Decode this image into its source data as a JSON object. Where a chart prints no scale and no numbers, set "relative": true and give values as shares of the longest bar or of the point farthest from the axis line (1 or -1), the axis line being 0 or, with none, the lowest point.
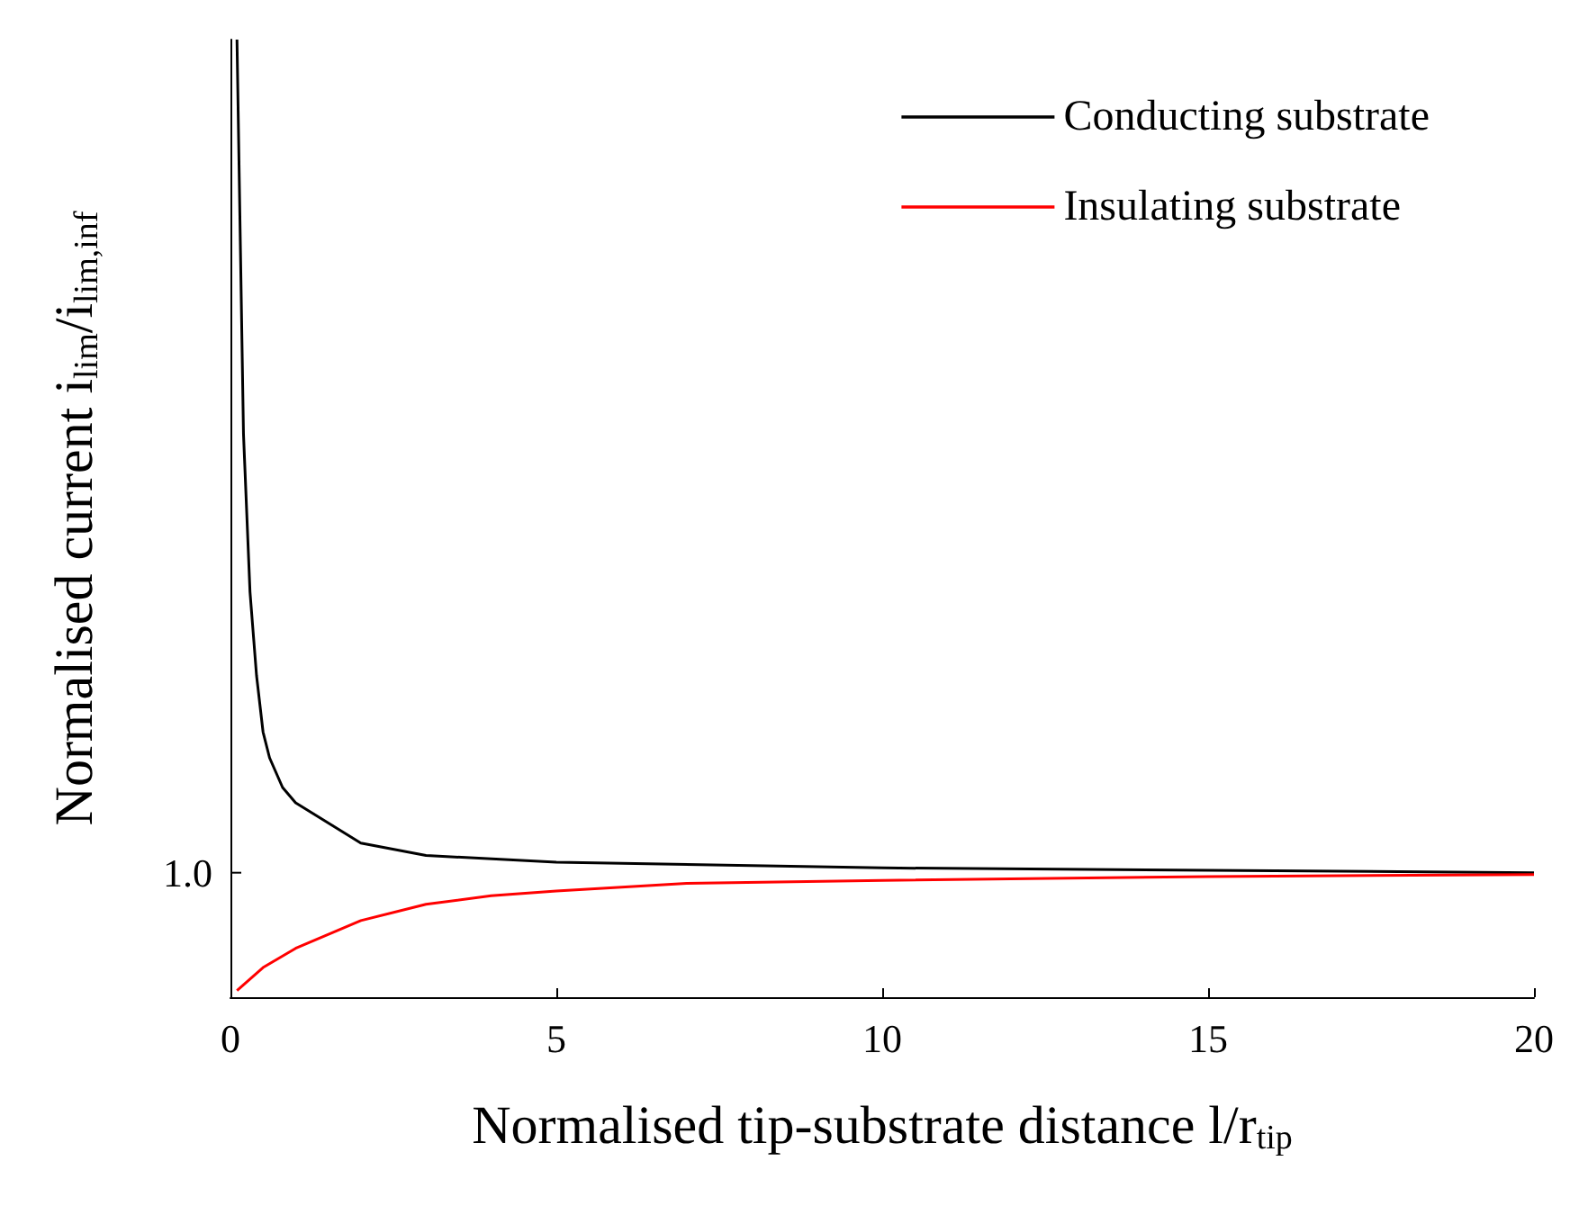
{
  "chart_data": {
    "type": "line",
    "relative": true,
    "xlabel": "Normalised tip-substrate distance l/r$_{tip}$",
    "ylabel": "Normalised current i$_{lim}$/i$_{lim,inf}$",
    "xlim": [
      0,
      20
    ],
    "xticks": [
      0,
      5,
      10,
      15,
      20
    ],
    "annotations": [
      "1.0"
    ],
    "legend": "top right",
    "grid": false,
    "marker": "none",
    "line_style": "solid",
    "series": [
      {
        "name": "Conducting substrate",
        "color": "#000000",
        "x": [
          0.1,
          0.2,
          0.3,
          0.4,
          0.5,
          0.6,
          0.8,
          1,
          2,
          3,
          5,
          10,
          20
        ],
        "values": [
          1.0,
          0.588,
          0.423,
          0.336,
          0.277,
          0.25,
          0.219,
          0.203,
          0.161,
          0.148,
          0.141,
          0.135,
          0.13
        ]
      },
      {
        "name": "Insulating substrate",
        "color": "#ff0000",
        "x": [
          0.1,
          0.5,
          1,
          2,
          3,
          4,
          5,
          7,
          10,
          15,
          20
        ],
        "values": [
          0.007,
          0.031,
          0.051,
          0.08,
          0.097,
          0.106,
          0.111,
          0.119,
          0.122,
          0.126,
          0.128
        ]
      }
    ]
  }
}
